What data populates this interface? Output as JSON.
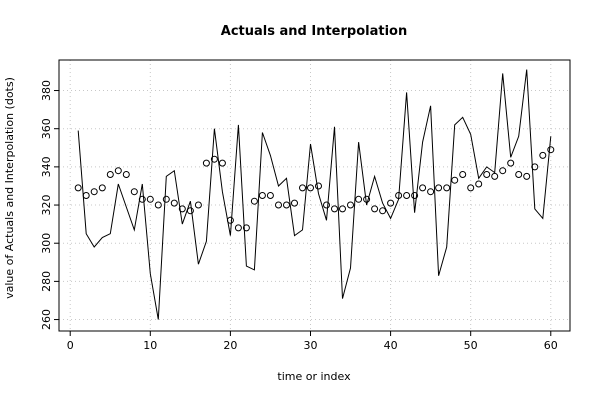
{
  "chart_data": {
    "type": "line",
    "title": "Actuals and Interpolation",
    "xlabel": "time or index",
    "ylabel": "value of Actuals and Interpolation (dots)",
    "xlim": [
      -1.4,
      62.4
    ],
    "ylim": [
      254,
      396
    ],
    "xticks": [
      0,
      10,
      20,
      30,
      40,
      50,
      60
    ],
    "yticks": [
      260,
      280,
      300,
      320,
      340,
      360,
      380
    ],
    "grid": true,
    "series": [
      {
        "style": "line",
        "x": [
          1,
          2,
          3,
          4,
          5,
          6,
          7,
          8,
          9,
          10,
          11,
          12,
          13,
          14,
          15,
          16,
          17,
          18,
          19,
          20,
          21,
          22,
          23,
          24,
          25,
          26,
          27,
          28,
          29,
          30,
          31,
          32,
          33,
          34,
          35,
          36,
          37,
          38,
          39,
          40,
          41,
          42,
          43,
          44,
          45,
          46,
          47,
          48,
          49,
          50,
          51,
          52,
          53,
          54,
          55,
          56,
          57,
          58,
          59,
          60
        ],
        "values": [
          359,
          305,
          298,
          303,
          305,
          331,
          319,
          307,
          331,
          284,
          260,
          335,
          338,
          310,
          322,
          289,
          301,
          360,
          327,
          304,
          362,
          288,
          286,
          358,
          346,
          330,
          334,
          304,
          307,
          352,
          326,
          312,
          361,
          271,
          287,
          353,
          320,
          335,
          321,
          313,
          323,
          379,
          316,
          353,
          372,
          283,
          298,
          362,
          366,
          357,
          334,
          340,
          337,
          389,
          345,
          356,
          391,
          318,
          313,
          356
        ]
      },
      {
        "style": "points",
        "x": [
          1,
          2,
          3,
          4,
          5,
          6,
          7,
          8,
          9,
          10,
          11,
          12,
          13,
          14,
          15,
          16,
          17,
          18,
          19,
          20,
          21,
          22,
          23,
          24,
          25,
          26,
          27,
          28,
          29,
          30,
          31,
          32,
          33,
          34,
          35,
          36,
          37,
          38,
          39,
          40,
          41,
          42,
          43,
          44,
          45,
          46,
          47,
          48,
          49,
          50,
          51,
          52,
          53,
          54,
          55,
          56,
          57,
          58,
          59,
          60
        ],
        "values": [
          329,
          325,
          327,
          329,
          336,
          338,
          336,
          327,
          323,
          323,
          320,
          323,
          321,
          318,
          317,
          320,
          342,
          344,
          342,
          312,
          308,
          308,
          322,
          325,
          325,
          320,
          320,
          321,
          329,
          329,
          330,
          320,
          318,
          318,
          320,
          323,
          323,
          318,
          317,
          321,
          325,
          325,
          325,
          329,
          327,
          329,
          329,
          333,
          336,
          329,
          331,
          336,
          335,
          338,
          342,
          336,
          335,
          340,
          346,
          349
        ]
      }
    ]
  }
}
